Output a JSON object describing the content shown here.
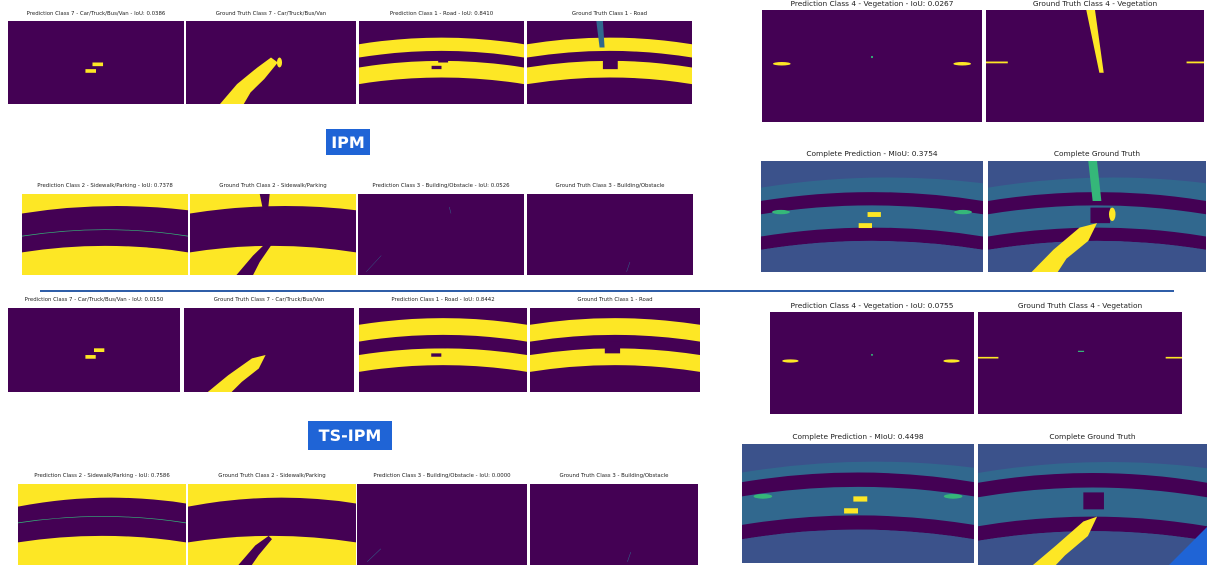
{
  "labels": {
    "ipm": "IPM",
    "ts_ipm": "TS-IPM"
  },
  "captions": {
    "ipm": {
      "pred_c7": "Prediction Class 7 - Car/Truck/Bus/Van - IoU: 0.0386",
      "gt_c7": "Ground Truth Class 7 - Car/Truck/Bus/Van",
      "pred_c1": "Prediction Class 1 - Road - IoU: 0.8410",
      "gt_c1": "Ground Truth Class 1 - Road",
      "pred_c4": "Prediction Class 4 - Vegetation - IoU: 0.0267",
      "gt_c4": "Ground Truth Class 4 - Vegetation",
      "pred_c2": "Prediction Class 2 - Sidewalk/Parking - IoU: 0.7378",
      "gt_c2": "Ground Truth Class 2 - Sidewalk/Parking",
      "pred_c3": "Prediction Class 3 - Building/Obstacle - IoU: 0.0526",
      "gt_c3": "Ground Truth Class 3 - Building/Obstacle",
      "pred_all": "Complete Prediction - MIoU: 0.3754",
      "gt_all": "Complete Ground Truth"
    },
    "ts": {
      "pred_c7": "Prediction Class 7 - Car/Truck/Bus/Van - IoU: 0.0150",
      "gt_c7": "Ground Truth Class 7 - Car/Truck/Bus/Van",
      "pred_c1": "Prediction Class 1 - Road - IoU: 0.8442",
      "gt_c1": "Ground Truth Class 1 - Road",
      "pred_c4": "Prediction Class 4 - Vegetation - IoU: 0.0755",
      "gt_c4": "Ground Truth Class 4 - Vegetation",
      "pred_c2": "Prediction Class 2 - Sidewalk/Parking - IoU: 0.7586",
      "gt_c2": "Ground Truth Class 2 - Sidewalk/Parking",
      "pred_c3": "Prediction Class 3 - Building/Obstacle - IoU: 0.0000",
      "gt_c3": "Ground Truth Class 3 - Building/Obstacle",
      "pred_all": "Complete Prediction - MIoU: 0.4498",
      "gt_all": "Complete Ground Truth"
    }
  },
  "colors": {
    "background_class": "#440154",
    "target_class": "#fde725",
    "road_full": "#31688e",
    "sidewalk_full": "#3b528b",
    "vegetation_full": "#35b779",
    "vegetation_mask": "#fde725",
    "badge": "#1f64d6",
    "divider": "#2f5ea8"
  }
}
